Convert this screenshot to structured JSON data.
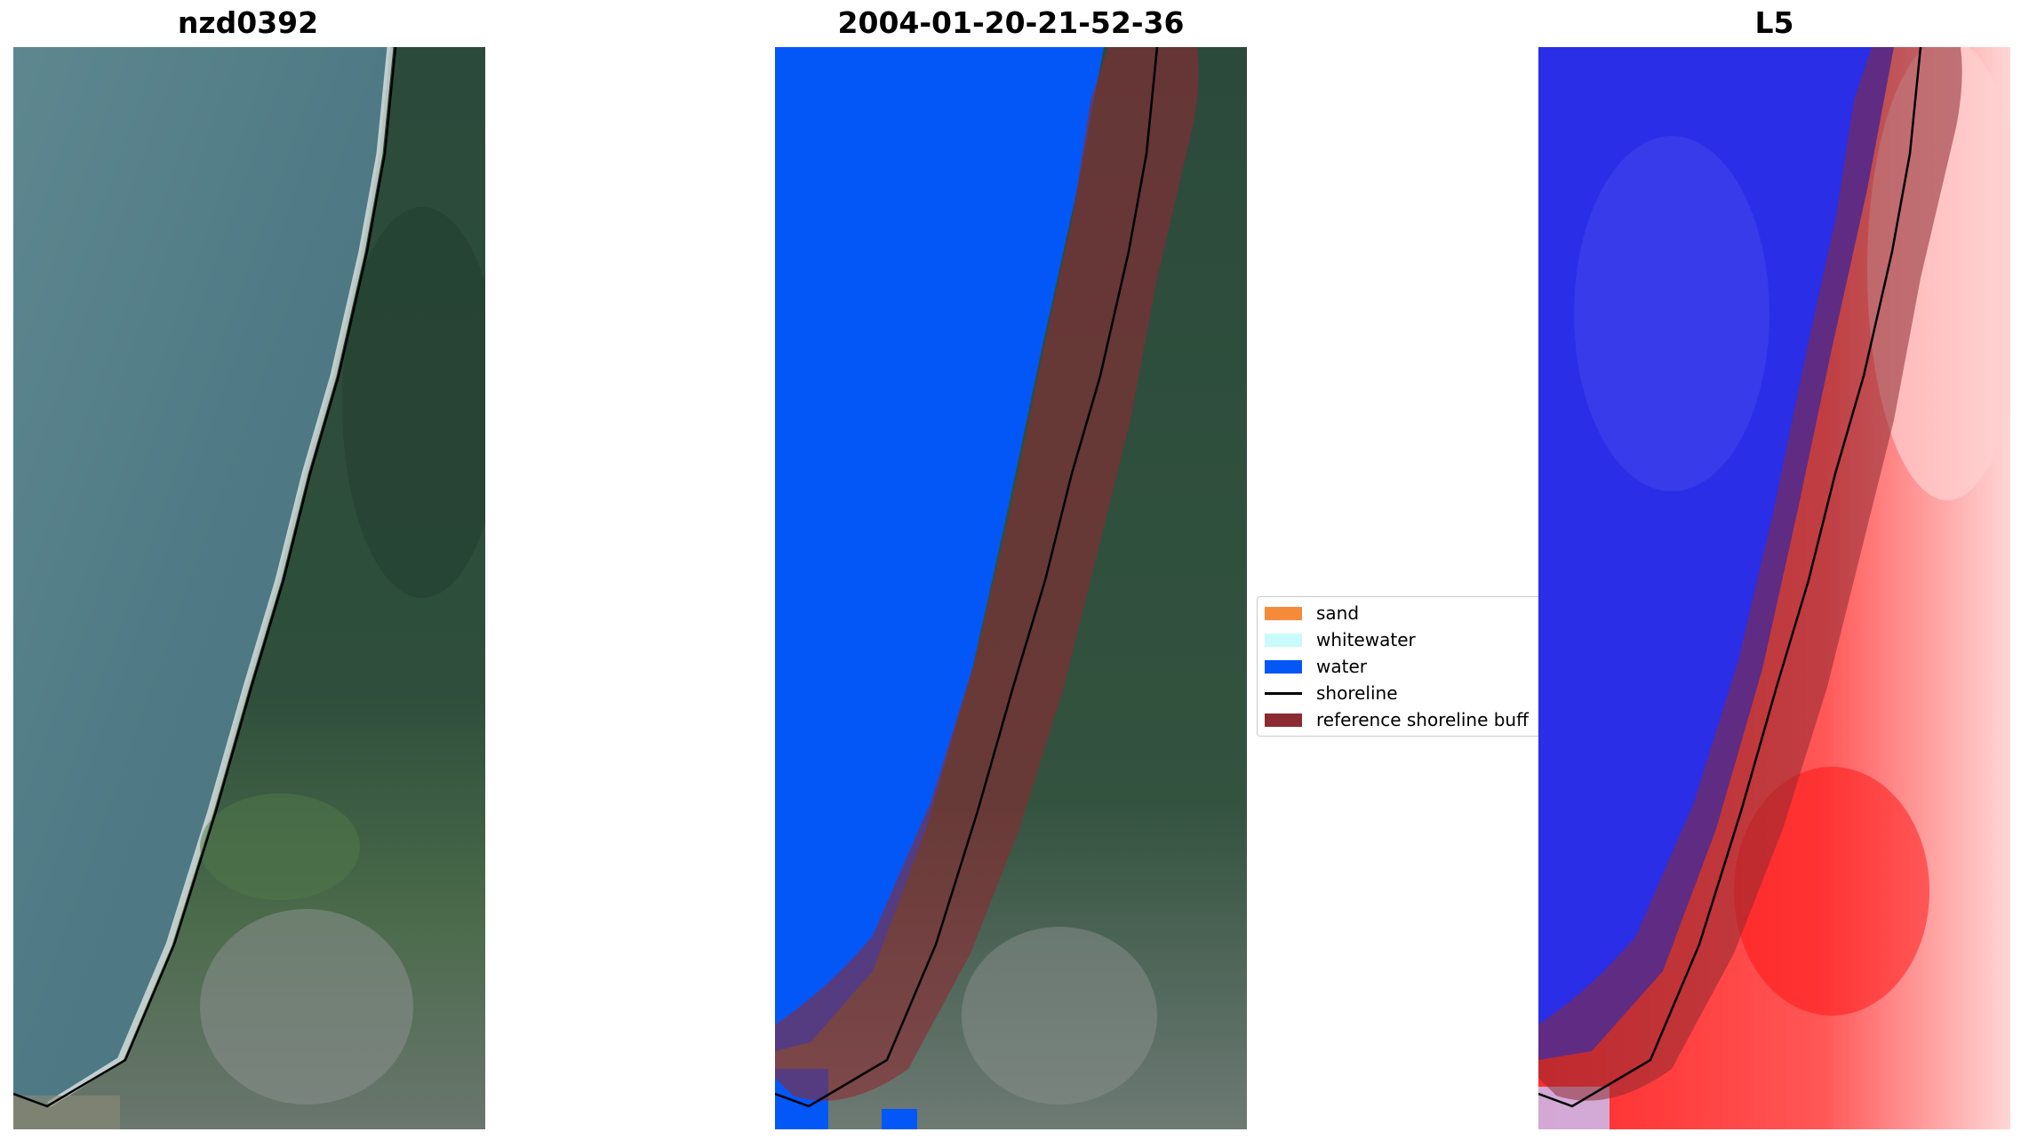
{
  "panels": [
    {
      "title": "nzd0392"
    },
    {
      "title": "2004-01-20-21-52-36"
    },
    {
      "title": "L5"
    }
  ],
  "legend": {
    "items": [
      {
        "label": "sand",
        "kind": "patch",
        "color": "#f58a3a"
      },
      {
        "label": "whitewater",
        "kind": "patch",
        "color": "#c8fbfa"
      },
      {
        "label": "water",
        "kind": "patch",
        "color": "#0457f7"
      },
      {
        "label": "shoreline",
        "kind": "line",
        "color": "#000000"
      },
      {
        "label": "reference shoreline buff",
        "kind": "patch",
        "color": "#8c2a32"
      }
    ]
  },
  "colors": {
    "ocean": "#4d7683",
    "forest": "#2c4a3a",
    "water_class": "#0457f7",
    "buffer": "#8c2a32",
    "l5_blue": "#2a2ee6",
    "l5_red": "#ff2a2a"
  }
}
